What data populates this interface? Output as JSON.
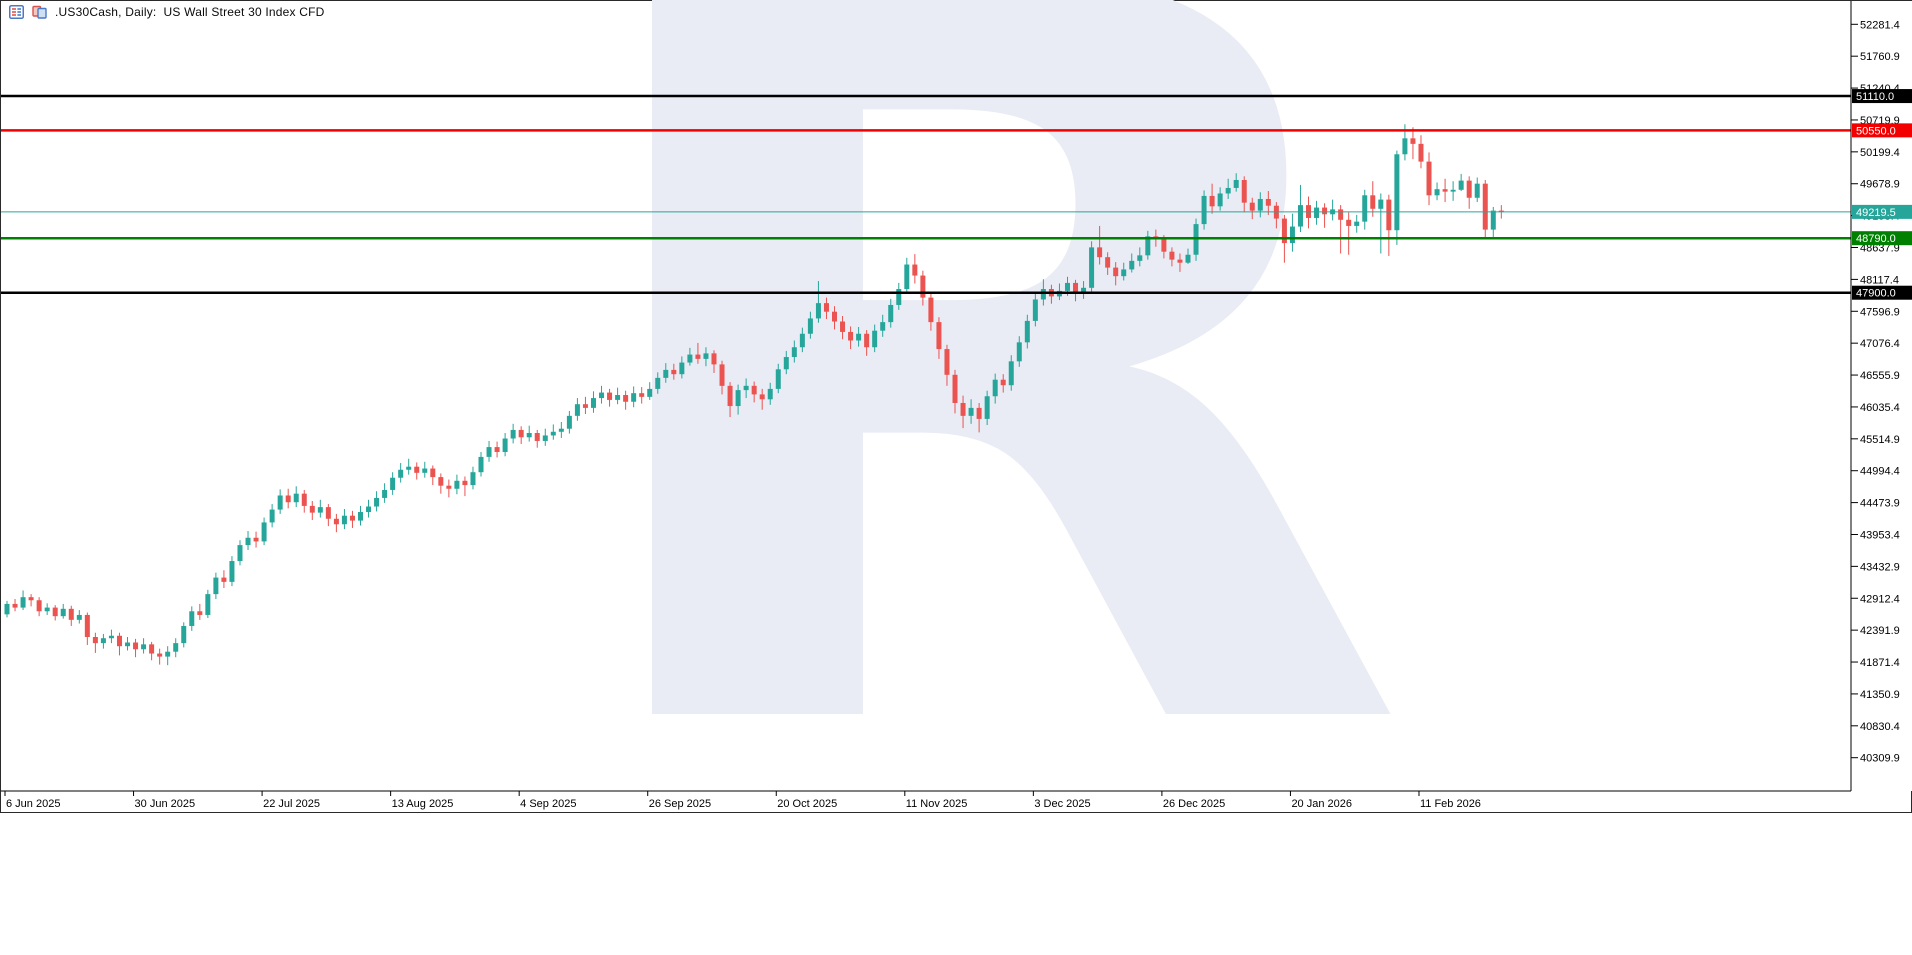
{
  "header": {
    "title": ".US30Cash, Daily:  US Wall Street 30 Index CFD",
    "icons": [
      "market-watch-icon",
      "chart-window-icon"
    ]
  },
  "watermark": {
    "letter": "R",
    "color": "#e9ecf4"
  },
  "chart_data": {
    "type": "candlestick",
    "symbol": ".US30Cash",
    "timeframe": "Daily",
    "description": "US Wall Street 30 Index CFD",
    "colors": {
      "bull": "#26a69a",
      "bear": "#ea5350",
      "axis_text": "#000000",
      "axis_line": "#000000",
      "background": "#ffffff"
    },
    "y_axis": {
      "side": "right",
      "visible_range": [
        39765,
        52660
      ],
      "tick_step": 520.5,
      "ticks": [
        52281.4,
        51760.9,
        51240.4,
        50719.9,
        50199.4,
        49678.9,
        49158.4,
        48637.9,
        48117.4,
        47596.9,
        47076.4,
        46555.9,
        46035.4,
        45514.9,
        44994.4,
        44473.9,
        43953.4,
        43432.9,
        42912.4,
        42391.9,
        41871.4,
        41350.9,
        40830.4,
        40309.9
      ]
    },
    "x_axis": {
      "labels": [
        "6 Jun 2025",
        "30 Jun 2025",
        "22 Jul 2025",
        "13 Aug 2025",
        "4 Sep 2025",
        "26 Sep 2025",
        "20 Oct 2025",
        "11 Nov 2025",
        "3 Dec 2025",
        "26 Dec 2025",
        "20 Jan 2026",
        "11 Feb 2026"
      ],
      "bars_per_label": 16
    },
    "levels": [
      {
        "label": "51110.0",
        "price": 51110.0,
        "color": "#000000",
        "width": 2.5,
        "kind": "resistance"
      },
      {
        "label": "50550.0",
        "price": 50550.0,
        "color": "#f20000",
        "width": 2.5,
        "kind": "resistance"
      },
      {
        "label": "49219.5",
        "price": 49219.5,
        "color": "#26a69a",
        "width": 1,
        "kind": "current-price"
      },
      {
        "label": "48790.0",
        "price": 48790.0,
        "color": "#008000",
        "width": 2.5,
        "kind": "support"
      },
      {
        "label": "47900.0",
        "price": 47900.0,
        "color": "#000000",
        "width": 2.5,
        "kind": "support"
      }
    ],
    "current_price": 49219.5,
    "candles_ohlc": [
      [
        42650,
        42870,
        42600,
        42820
      ],
      [
        42820,
        42900,
        42700,
        42760
      ],
      [
        42760,
        43040,
        42720,
        42930
      ],
      [
        42930,
        42980,
        42780,
        42880
      ],
      [
        42880,
        42930,
        42620,
        42700
      ],
      [
        42700,
        42830,
        42640,
        42760
      ],
      [
        42760,
        42800,
        42550,
        42620
      ],
      [
        42620,
        42820,
        42580,
        42740
      ],
      [
        42740,
        42790,
        42460,
        42560
      ],
      [
        42560,
        42720,
        42500,
        42640
      ],
      [
        42640,
        42680,
        42150,
        42280
      ],
      [
        42280,
        42350,
        42020,
        42180
      ],
      [
        42180,
        42330,
        42090,
        42260
      ],
      [
        42260,
        42400,
        42180,
        42300
      ],
      [
        42300,
        42350,
        41980,
        42130
      ],
      [
        42130,
        42280,
        42060,
        42190
      ],
      [
        42190,
        42250,
        41950,
        42080
      ],
      [
        42080,
        42260,
        42010,
        42160
      ],
      [
        42160,
        42200,
        41900,
        42010
      ],
      [
        42010,
        42090,
        41830,
        41960
      ],
      [
        41960,
        42130,
        41820,
        42040
      ],
      [
        42040,
        42260,
        41950,
        42180
      ],
      [
        42180,
        42520,
        42110,
        42460
      ],
      [
        42460,
        42780,
        42380,
        42700
      ],
      [
        42700,
        42820,
        42560,
        42640
      ],
      [
        42640,
        43050,
        42590,
        42980
      ],
      [
        42980,
        43330,
        42900,
        43250
      ],
      [
        43250,
        43370,
        43080,
        43180
      ],
      [
        43180,
        43600,
        43110,
        43520
      ],
      [
        43520,
        43860,
        43450,
        43780
      ],
      [
        43780,
        44010,
        43700,
        43900
      ],
      [
        43900,
        44000,
        43740,
        43840
      ],
      [
        43840,
        44230,
        43780,
        44150
      ],
      [
        44150,
        44450,
        44070,
        44360
      ],
      [
        44360,
        44690,
        44290,
        44590
      ],
      [
        44590,
        44700,
        44380,
        44480
      ],
      [
        44480,
        44740,
        44400,
        44620
      ],
      [
        44620,
        44680,
        44310,
        44420
      ],
      [
        44420,
        44500,
        44190,
        44310
      ],
      [
        44310,
        44520,
        44230,
        44400
      ],
      [
        44400,
        44450,
        44090,
        44210
      ],
      [
        44210,
        44290,
        43990,
        44120
      ],
      [
        44120,
        44370,
        44040,
        44260
      ],
      [
        44260,
        44340,
        44060,
        44180
      ],
      [
        44180,
        44420,
        44100,
        44320
      ],
      [
        44320,
        44520,
        44230,
        44410
      ],
      [
        44410,
        44660,
        44330,
        44550
      ],
      [
        44550,
        44790,
        44470,
        44680
      ],
      [
        44680,
        44970,
        44600,
        44880
      ],
      [
        44880,
        45120,
        44800,
        45010
      ],
      [
        45010,
        45190,
        44930,
        45060
      ],
      [
        45060,
        45130,
        44850,
        44960
      ],
      [
        44960,
        45140,
        44880,
        45030
      ],
      [
        45030,
        45080,
        44760,
        44890
      ],
      [
        44890,
        44950,
        44620,
        44750
      ],
      [
        44750,
        44850,
        44560,
        44700
      ],
      [
        44700,
        44930,
        44610,
        44830
      ],
      [
        44830,
        44900,
        44580,
        44760
      ],
      [
        44760,
        45060,
        44690,
        44970
      ],
      [
        44970,
        45300,
        44900,
        45220
      ],
      [
        45220,
        45480,
        45140,
        45380
      ],
      [
        45380,
        45470,
        45210,
        45300
      ],
      [
        45300,
        45610,
        45230,
        45520
      ],
      [
        45520,
        45760,
        45440,
        45660
      ],
      [
        45660,
        45720,
        45430,
        45540
      ],
      [
        45540,
        45730,
        45470,
        45610
      ],
      [
        45610,
        45660,
        45370,
        45480
      ],
      [
        45480,
        45680,
        45400,
        45570
      ],
      [
        45570,
        45750,
        45500,
        45630
      ],
      [
        45630,
        45790,
        45530,
        45680
      ],
      [
        45680,
        45970,
        45600,
        45890
      ],
      [
        45890,
        46180,
        45810,
        46080
      ],
      [
        46080,
        46200,
        45920,
        46020
      ],
      [
        46020,
        46290,
        45940,
        46180
      ],
      [
        46180,
        46380,
        46090,
        46270
      ],
      [
        46270,
        46330,
        46040,
        46150
      ],
      [
        46150,
        46350,
        46080,
        46230
      ],
      [
        46230,
        46300,
        45990,
        46120
      ],
      [
        46120,
        46370,
        46030,
        46260
      ],
      [
        46260,
        46360,
        46090,
        46200
      ],
      [
        46200,
        46440,
        46150,
        46330
      ],
      [
        46330,
        46600,
        46250,
        46510
      ],
      [
        46510,
        46750,
        46430,
        46640
      ],
      [
        46640,
        46740,
        46480,
        46570
      ],
      [
        46570,
        46860,
        46500,
        46760
      ],
      [
        46760,
        47000,
        46710,
        46890
      ],
      [
        46890,
        47080,
        46740,
        46820
      ],
      [
        46820,
        47010,
        46700,
        46910
      ],
      [
        46910,
        46960,
        46590,
        46730
      ],
      [
        46730,
        46790,
        46240,
        46380
      ],
      [
        46380,
        46440,
        45870,
        46050
      ],
      [
        46050,
        46400,
        45910,
        46310
      ],
      [
        46310,
        46500,
        46180,
        46380
      ],
      [
        46380,
        46450,
        46110,
        46240
      ],
      [
        46240,
        46330,
        45990,
        46160
      ],
      [
        46160,
        46430,
        46070,
        46330
      ],
      [
        46330,
        46740,
        46260,
        46650
      ],
      [
        46650,
        46950,
        46570,
        46850
      ],
      [
        46850,
        47120,
        46760,
        47010
      ],
      [
        47010,
        47330,
        46930,
        47230
      ],
      [
        47230,
        47590,
        47150,
        47480
      ],
      [
        47480,
        48090,
        47410,
        47730
      ],
      [
        47730,
        47820,
        47470,
        47590
      ],
      [
        47590,
        47680,
        47300,
        47430
      ],
      [
        47430,
        47520,
        47140,
        47260
      ],
      [
        47260,
        47350,
        46980,
        47120
      ],
      [
        47120,
        47340,
        47020,
        47230
      ],
      [
        47230,
        47290,
        46870,
        47010
      ],
      [
        47010,
        47380,
        46930,
        47280
      ],
      [
        47280,
        47540,
        47180,
        47420
      ],
      [
        47420,
        47800,
        47330,
        47700
      ],
      [
        47700,
        48060,
        47620,
        47960
      ],
      [
        47960,
        48470,
        47880,
        48360
      ],
      [
        48360,
        48530,
        48050,
        48180
      ],
      [
        48180,
        48260,
        47690,
        47820
      ],
      [
        47820,
        47900,
        47280,
        47420
      ],
      [
        47420,
        47500,
        46820,
        46980
      ],
      [
        46980,
        47050,
        46380,
        46560
      ],
      [
        46560,
        46640,
        45930,
        46100
      ],
      [
        46100,
        46220,
        45690,
        45890
      ],
      [
        45890,
        46160,
        45760,
        46020
      ],
      [
        46020,
        46100,
        45620,
        45840
      ],
      [
        45840,
        46300,
        45740,
        46210
      ],
      [
        46210,
        46580,
        46090,
        46480
      ],
      [
        46480,
        46570,
        46270,
        46390
      ],
      [
        46390,
        46880,
        46300,
        46780
      ],
      [
        46780,
        47190,
        46690,
        47090
      ],
      [
        47090,
        47540,
        46990,
        47440
      ],
      [
        47440,
        47900,
        47350,
        47790
      ],
      [
        47790,
        48120,
        47690,
        47960
      ],
      [
        47960,
        48030,
        47720,
        47840
      ],
      [
        47840,
        48050,
        47780,
        47930
      ],
      [
        47930,
        48160,
        47850,
        48060
      ],
      [
        48060,
        48110,
        47760,
        47890
      ],
      [
        47890,
        48090,
        47800,
        47980
      ],
      [
        47980,
        48740,
        47900,
        48640
      ],
      [
        48640,
        48990,
        48360,
        48480
      ],
      [
        48480,
        48560,
        48190,
        48310
      ],
      [
        48310,
        48400,
        48020,
        48170
      ],
      [
        48170,
        48390,
        48100,
        48280
      ],
      [
        48280,
        48540,
        48230,
        48420
      ],
      [
        48420,
        48640,
        48330,
        48510
      ],
      [
        48510,
        48910,
        48440,
        48820
      ],
      [
        48820,
        48930,
        48650,
        48780
      ],
      [
        48780,
        48840,
        48460,
        48570
      ],
      [
        48570,
        48640,
        48330,
        48440
      ],
      [
        48440,
        48540,
        48240,
        48390
      ],
      [
        48390,
        48620,
        48370,
        48520
      ],
      [
        48520,
        49110,
        48420,
        49020
      ],
      [
        49020,
        49570,
        48930,
        49480
      ],
      [
        49480,
        49680,
        49190,
        49310
      ],
      [
        49310,
        49620,
        49240,
        49520
      ],
      [
        49520,
        49760,
        49430,
        49610
      ],
      [
        49610,
        49850,
        49550,
        49740
      ],
      [
        49740,
        49800,
        49210,
        49370
      ],
      [
        49370,
        49450,
        49100,
        49240
      ],
      [
        49240,
        49540,
        49130,
        49430
      ],
      [
        49430,
        49560,
        49170,
        49320
      ],
      [
        49320,
        49380,
        48950,
        49110
      ],
      [
        49110,
        49170,
        48390,
        48710
      ],
      [
        48710,
        49190,
        48570,
        48980
      ],
      [
        48980,
        49660,
        48890,
        49330
      ],
      [
        49330,
        49470,
        48950,
        49120
      ],
      [
        49120,
        49400,
        49010,
        49290
      ],
      [
        49290,
        49360,
        48960,
        49180
      ],
      [
        49180,
        49420,
        49080,
        49260
      ],
      [
        49260,
        49330,
        48540,
        49090
      ],
      [
        49090,
        49210,
        48520,
        48990
      ],
      [
        48990,
        49170,
        48880,
        49060
      ],
      [
        49060,
        49580,
        48930,
        49490
      ],
      [
        49490,
        49720,
        49140,
        49270
      ],
      [
        49270,
        49520,
        48540,
        49420
      ],
      [
        49420,
        49500,
        48500,
        48920
      ],
      [
        48920,
        50220,
        48680,
        50160
      ],
      [
        50160,
        50650,
        50060,
        50420
      ],
      [
        50420,
        50600,
        50080,
        50330
      ],
      [
        50330,
        50470,
        49930,
        50040
      ],
      [
        50040,
        50190,
        49330,
        49490
      ],
      [
        49490,
        49700,
        49410,
        49590
      ],
      [
        49590,
        49760,
        49380,
        49550
      ],
      [
        49550,
        49720,
        49400,
        49580
      ],
      [
        49580,
        49840,
        49560,
        49730
      ],
      [
        49730,
        49800,
        49270,
        49450
      ],
      [
        49450,
        49780,
        49380,
        49680
      ],
      [
        49680,
        49740,
        48770,
        48930
      ],
      [
        48930,
        49300,
        48810,
        49240
      ],
      [
        49240,
        49330,
        49110,
        49219.5
      ]
    ]
  }
}
